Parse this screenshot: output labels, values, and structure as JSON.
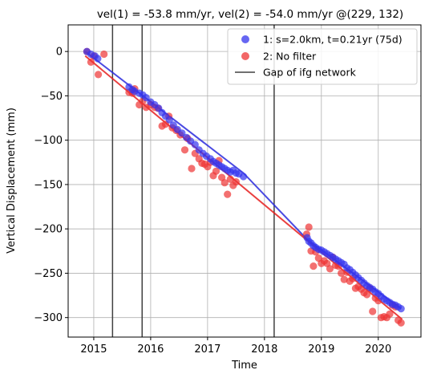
{
  "chart_data": {
    "type": "scatter",
    "title": "vel(1) = -53.8 mm/yr, vel(2) = -54.0 mm/yr @(229, 132)",
    "xlabel": "Time",
    "ylabel": "Vertical Displacement (mm)",
    "xlim": [
      2014.55,
      2020.75
    ],
    "ylim": [
      -322,
      30
    ],
    "x_ticks": [
      {
        "value": 2015,
        "label": "2015"
      },
      {
        "value": 2016,
        "label": "2016"
      },
      {
        "value": 2017,
        "label": "2017"
      },
      {
        "value": 2018,
        "label": "2018"
      },
      {
        "value": 2019,
        "label": "2019"
      },
      {
        "value": 2020,
        "label": "2020"
      }
    ],
    "y_ticks": [
      {
        "value": 0,
        "label": "0"
      },
      {
        "value": -50,
        "label": "−50"
      },
      {
        "value": -100,
        "label": "−100"
      },
      {
        "value": -150,
        "label": "−150"
      },
      {
        "value": -200,
        "label": "−200"
      },
      {
        "value": -250,
        "label": "−250"
      },
      {
        "value": -300,
        "label": "−300"
      }
    ],
    "grid": true,
    "legend_position": "top-right",
    "gaps": [
      2015.33,
      2015.85,
      2018.17
    ],
    "gap_color": "#404040",
    "legend": {
      "s1": "1: s=2.0km, t=0.21yr (75d)",
      "s2": "2: No filter",
      "gap": "Gap of ifg network"
    },
    "series": [
      {
        "name": "1: s=2.0km, t=0.21yr (75d)",
        "color": "#3333ee",
        "line_color": "#2a2add",
        "fit": [
          [
            2014.85,
            0
          ],
          [
            2017.63,
            -137
          ],
          [
            2018.75,
            -212
          ],
          [
            2020.4,
            -290
          ]
        ],
        "points": [
          [
            2014.88,
            0
          ],
          [
            2014.95,
            -3
          ],
          [
            2015.02,
            -5
          ],
          [
            2015.07,
            -8
          ],
          [
            2015.62,
            -40
          ],
          [
            2015.68,
            -43
          ],
          [
            2015.72,
            -45
          ],
          [
            2015.8,
            -47
          ],
          [
            2015.86,
            -49
          ],
          [
            2015.92,
            -52
          ],
          [
            2016.0,
            -57
          ],
          [
            2016.07,
            -60
          ],
          [
            2016.14,
            -64
          ],
          [
            2016.2,
            -69
          ],
          [
            2016.26,
            -73
          ],
          [
            2016.33,
            -77
          ],
          [
            2016.4,
            -83
          ],
          [
            2016.47,
            -88
          ],
          [
            2016.55,
            -92
          ],
          [
            2016.63,
            -97
          ],
          [
            2016.7,
            -101
          ],
          [
            2016.78,
            -105
          ],
          [
            2016.85,
            -111
          ],
          [
            2016.92,
            -115
          ],
          [
            2016.98,
            -118
          ],
          [
            2017.05,
            -121
          ],
          [
            2017.1,
            -124
          ],
          [
            2017.15,
            -126
          ],
          [
            2017.2,
            -128
          ],
          [
            2017.25,
            -130
          ],
          [
            2017.3,
            -132
          ],
          [
            2017.35,
            -134
          ],
          [
            2017.4,
            -136
          ],
          [
            2017.45,
            -134
          ],
          [
            2017.5,
            -137
          ],
          [
            2017.55,
            -138
          ],
          [
            2017.63,
            -141
          ],
          [
            2018.75,
            -210
          ],
          [
            2018.78,
            -214
          ],
          [
            2018.82,
            -216
          ],
          [
            2018.86,
            -219
          ],
          [
            2018.9,
            -221
          ],
          [
            2018.95,
            -223
          ],
          [
            2019.0,
            -224
          ],
          [
            2019.05,
            -226
          ],
          [
            2019.1,
            -228
          ],
          [
            2019.15,
            -230
          ],
          [
            2019.2,
            -232
          ],
          [
            2019.25,
            -234
          ],
          [
            2019.3,
            -236
          ],
          [
            2019.35,
            -238
          ],
          [
            2019.4,
            -240
          ],
          [
            2019.45,
            -244
          ],
          [
            2019.5,
            -246
          ],
          [
            2019.55,
            -249
          ],
          [
            2019.6,
            -252
          ],
          [
            2019.65,
            -255
          ],
          [
            2019.7,
            -258
          ],
          [
            2019.75,
            -261
          ],
          [
            2019.8,
            -264
          ],
          [
            2019.85,
            -266
          ],
          [
            2019.9,
            -268
          ],
          [
            2019.95,
            -271
          ],
          [
            2020.0,
            -273
          ],
          [
            2020.05,
            -276
          ],
          [
            2020.1,
            -279
          ],
          [
            2020.15,
            -281
          ],
          [
            2020.2,
            -283
          ],
          [
            2020.25,
            -285
          ],
          [
            2020.3,
            -286
          ],
          [
            2020.35,
            -288
          ],
          [
            2020.4,
            -290
          ]
        ]
      },
      {
        "name": "2: No filter",
        "color": "#ee3333",
        "line_color": "#e61e1e",
        "fit": [
          [
            2014.85,
            -5
          ],
          [
            2020.42,
            -302
          ]
        ],
        "points": [
          [
            2014.88,
            0
          ],
          [
            2014.95,
            -12
          ],
          [
            2015.0,
            -5
          ],
          [
            2015.08,
            -26
          ],
          [
            2015.18,
            -3
          ],
          [
            2015.62,
            -46
          ],
          [
            2015.68,
            -47
          ],
          [
            2015.72,
            -42
          ],
          [
            2015.8,
            -60
          ],
          [
            2015.86,
            -56
          ],
          [
            2015.92,
            -63
          ],
          [
            2016.0,
            -60
          ],
          [
            2016.07,
            -63
          ],
          [
            2016.13,
            -64
          ],
          [
            2016.2,
            -84
          ],
          [
            2016.26,
            -82
          ],
          [
            2016.32,
            -73
          ],
          [
            2016.38,
            -86
          ],
          [
            2016.45,
            -89
          ],
          [
            2016.52,
            -94
          ],
          [
            2016.6,
            -111
          ],
          [
            2016.65,
            -98
          ],
          [
            2016.72,
            -132
          ],
          [
            2016.78,
            -115
          ],
          [
            2016.85,
            -121
          ],
          [
            2016.9,
            -126
          ],
          [
            2016.95,
            -127
          ],
          [
            2017.0,
            -130
          ],
          [
            2017.05,
            -125
          ],
          [
            2017.1,
            -140
          ],
          [
            2017.15,
            -135
          ],
          [
            2017.2,
            -123
          ],
          [
            2017.25,
            -142
          ],
          [
            2017.3,
            -148
          ],
          [
            2017.35,
            -161
          ],
          [
            2017.4,
            -144
          ],
          [
            2017.45,
            -151
          ],
          [
            2017.5,
            -147
          ],
          [
            2018.74,
            -206
          ],
          [
            2018.78,
            -198
          ],
          [
            2018.82,
            -225
          ],
          [
            2018.86,
            -242
          ],
          [
            2018.9,
            -226
          ],
          [
            2018.95,
            -233
          ],
          [
            2019.0,
            -239
          ],
          [
            2019.05,
            -236
          ],
          [
            2019.1,
            -239
          ],
          [
            2019.15,
            -245
          ],
          [
            2019.2,
            -232
          ],
          [
            2019.25,
            -241
          ],
          [
            2019.3,
            -242
          ],
          [
            2019.35,
            -250
          ],
          [
            2019.4,
            -257
          ],
          [
            2019.45,
            -249
          ],
          [
            2019.5,
            -259
          ],
          [
            2019.55,
            -256
          ],
          [
            2019.6,
            -267
          ],
          [
            2019.65,
            -265
          ],
          [
            2019.7,
            -268
          ],
          [
            2019.75,
            -272
          ],
          [
            2019.8,
            -274
          ],
          [
            2019.85,
            -267
          ],
          [
            2019.9,
            -293
          ],
          [
            2019.95,
            -278
          ],
          [
            2020.0,
            -281
          ],
          [
            2020.05,
            -300
          ],
          [
            2020.1,
            -299
          ],
          [
            2020.15,
            -300
          ],
          [
            2020.2,
            -296
          ],
          [
            2020.25,
            -286
          ],
          [
            2020.3,
            -288
          ],
          [
            2020.35,
            -303
          ],
          [
            2020.4,
            -306
          ]
        ]
      }
    ]
  }
}
